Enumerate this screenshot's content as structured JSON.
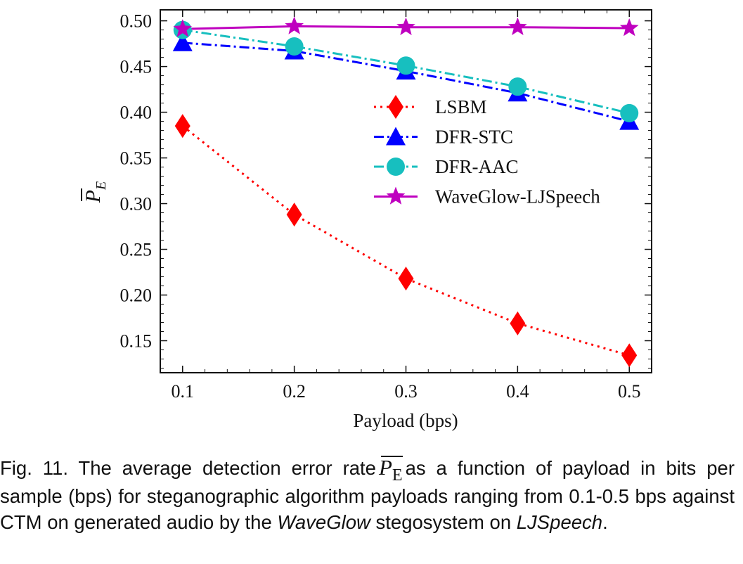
{
  "chart_data": {
    "type": "line",
    "x": [
      0.1,
      0.2,
      0.3,
      0.4,
      0.5
    ],
    "series": [
      {
        "name": "LSBM",
        "values": [
          0.385,
          0.288,
          0.218,
          0.169,
          0.134
        ],
        "color": "#ff0000",
        "linestyle": "dotted",
        "marker": "diamond"
      },
      {
        "name": "DFR-STC",
        "values": [
          0.476,
          0.467,
          0.445,
          0.421,
          0.39
        ],
        "color": "#0000ff",
        "linestyle": "dashdot",
        "marker": "triangle"
      },
      {
        "name": "DFR-AAC",
        "values": [
          0.49,
          0.472,
          0.451,
          0.428,
          0.399
        ],
        "color": "#17bfbf",
        "linestyle": "dashdot",
        "marker": "circle"
      },
      {
        "name": "WaveGlow-LJSpeech",
        "values": [
          0.491,
          0.494,
          0.493,
          0.493,
          0.492
        ],
        "color": "#bf00bf",
        "linestyle": "solid",
        "marker": "star"
      }
    ],
    "xlabel": "Payload (bps)",
    "ylabel": "P_E",
    "xlim": [
      0.08,
      0.52
    ],
    "ylim": [
      0.115,
      0.512
    ],
    "xticks": [
      "0.1",
      "0.2",
      "0.3",
      "0.4",
      "0.5"
    ],
    "yticks": [
      "0.15",
      "0.20",
      "0.25",
      "0.30",
      "0.35",
      "0.40",
      "0.45",
      "0.50"
    ],
    "legend_position": "center-right",
    "grid": false
  },
  "caption": {
    "prefix": "Fig. 11. The average detection error rate",
    "symbol": "P",
    "symbol_sub": "E",
    "middle": "as a function of payload in bits per sample (bps) for steganographic algorithm payloads ranging from 0.1-0.5 bps against CTM on generated audio by the",
    "italic1": "WaveGlow",
    "between": "stegosystem on",
    "italic2": "LJSpeech",
    "end": "."
  }
}
